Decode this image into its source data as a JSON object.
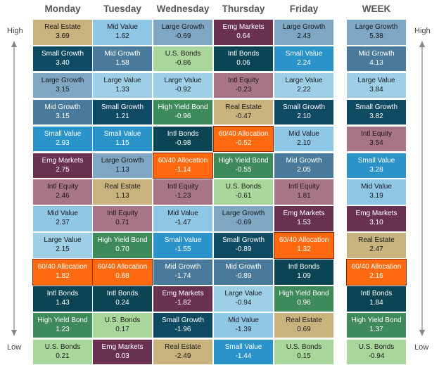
{
  "labels": {
    "high": "High",
    "low": "Low"
  },
  "asset_colors": {
    "Real Estate": "#c8b37f",
    "Small Growth": "#0e4a62",
    "Large Growth": "#7fa7c4",
    "Mid Growth": "#4a7a9b",
    "Small Value": "#2a93c9",
    "Emg Markets": "#6a3050",
    "Intl Equity": "#a87488",
    "Mid Value": "#8fc6e6",
    "Large Value": "#9dcfe7",
    "60/40 Allocation": "#ff6a10",
    "Intl Bonds": "#0b4452",
    "High Yield Bond": "#3f8a5a",
    "U.S. Bonds": "#a9d69a"
  },
  "chart_data": {
    "type": "table",
    "columns": [
      {
        "name": "Monday",
        "cells": [
          {
            "asset": "Real Estate",
            "value": "3.69"
          },
          {
            "asset": "Small Growth",
            "value": "3.40"
          },
          {
            "asset": "Large Growth",
            "value": "3.15"
          },
          {
            "asset": "Mid Growth",
            "value": "3.15"
          },
          {
            "asset": "Small Value",
            "value": "2.93"
          },
          {
            "asset": "Emg Markets",
            "value": "2.75"
          },
          {
            "asset": "Intl Equity",
            "value": "2.46"
          },
          {
            "asset": "Mid Value",
            "value": "2.37"
          },
          {
            "asset": "Large Value",
            "value": "2.15"
          },
          {
            "asset": "60/40 Allocation",
            "value": "1.82"
          },
          {
            "asset": "Intl Bonds",
            "value": "1.43"
          },
          {
            "asset": "High Yield Bond",
            "value": "1.23"
          },
          {
            "asset": "U.S. Bonds",
            "value": "0.21"
          }
        ]
      },
      {
        "name": "Tuesday",
        "cells": [
          {
            "asset": "Mid Value",
            "value": "1.62"
          },
          {
            "asset": "Mid Growth",
            "value": "1.58"
          },
          {
            "asset": "Large Value",
            "value": "1.33"
          },
          {
            "asset": "Small Growth",
            "value": "1.21"
          },
          {
            "asset": "Small Value",
            "value": "1.15"
          },
          {
            "asset": "Large Growth",
            "value": "1.13"
          },
          {
            "asset": "Real Estate",
            "value": "1.13"
          },
          {
            "asset": "Intl Equity",
            "value": "0.71"
          },
          {
            "asset": "High Yield Bond",
            "value": "0.70"
          },
          {
            "asset": "60/40 Allocation",
            "value": "0.68"
          },
          {
            "asset": "Intl Bonds",
            "value": "0.24"
          },
          {
            "asset": "U.S. Bonds",
            "value": "0.17"
          },
          {
            "asset": "Emg Markets",
            "value": "0.03"
          }
        ]
      },
      {
        "name": "Wednesday",
        "cells": [
          {
            "asset": "Large Growth",
            "value": "-0.69"
          },
          {
            "asset": "U.S. Bonds",
            "value": "-0.86"
          },
          {
            "asset": "Large Value",
            "value": "-0.92"
          },
          {
            "asset": "High Yield Bond",
            "value": "-0.96"
          },
          {
            "asset": "Intl Bonds",
            "value": "-0.98"
          },
          {
            "asset": "60/40 Allocation",
            "value": "-1.14"
          },
          {
            "asset": "Intl Equity",
            "value": "-1.23"
          },
          {
            "asset": "Mid Value",
            "value": "-1.47"
          },
          {
            "asset": "Small Value",
            "value": "-1.55"
          },
          {
            "asset": "Mid Growth",
            "value": "-1.74"
          },
          {
            "asset": "Emg Markets",
            "value": "-1.82"
          },
          {
            "asset": "Small Growth",
            "value": "-1.96"
          },
          {
            "asset": "Real Estate",
            "value": "-2.49"
          }
        ]
      },
      {
        "name": "Thursday",
        "cells": [
          {
            "asset": "Emg Markets",
            "value": "0.64"
          },
          {
            "asset": "Intl Bonds",
            "value": "0.06"
          },
          {
            "asset": "Intl Equity",
            "value": "-0.23"
          },
          {
            "asset": "Real Estate",
            "value": "-0.47"
          },
          {
            "asset": "60/40 Allocation",
            "value": "-0.52"
          },
          {
            "asset": "High Yield Bond",
            "value": "-0.55"
          },
          {
            "asset": "U.S. Bonds",
            "value": "-0.61"
          },
          {
            "asset": "Large Growth",
            "value": "-0.69"
          },
          {
            "asset": "Small Growth",
            "value": "-0.89"
          },
          {
            "asset": "Mid Growth",
            "value": "-0.89"
          },
          {
            "asset": "Large Value",
            "value": "-0.94"
          },
          {
            "asset": "Mid Value",
            "value": "-1.39"
          },
          {
            "asset": "Small Value",
            "value": "-1.44"
          }
        ]
      },
      {
        "name": "Friday",
        "cells": [
          {
            "asset": "Large Growth",
            "value": "2.43"
          },
          {
            "asset": "Small Value",
            "value": "2.24"
          },
          {
            "asset": "Large Value",
            "value": "2.22"
          },
          {
            "asset": "Small Growth",
            "value": "2.10"
          },
          {
            "asset": "Mid Value",
            "value": "2.10"
          },
          {
            "asset": "Mid Growth",
            "value": "2.05"
          },
          {
            "asset": "Intl Equity",
            "value": "1.81"
          },
          {
            "asset": "Emg Markets",
            "value": "1.53"
          },
          {
            "asset": "60/40 Allocation",
            "value": "1.32"
          },
          {
            "asset": "Intl Bonds",
            "value": "1.09"
          },
          {
            "asset": "High Yield Bond",
            "value": "0.96"
          },
          {
            "asset": "Real Estate",
            "value": "0.69"
          },
          {
            "asset": "U.S. Bonds",
            "value": "0.15"
          }
        ]
      },
      {
        "name": "WEEK",
        "cells": [
          {
            "asset": "Large Growth",
            "value": "5.38"
          },
          {
            "asset": "Mid Growth",
            "value": "4.13"
          },
          {
            "asset": "Large Value",
            "value": "3.84"
          },
          {
            "asset": "Small Growth",
            "value": "3.82"
          },
          {
            "asset": "Intl Equity",
            "value": "3.54"
          },
          {
            "asset": "Small Value",
            "value": "3.28"
          },
          {
            "asset": "Mid Value",
            "value": "3.19"
          },
          {
            "asset": "Emg Markets",
            "value": "3.10"
          },
          {
            "asset": "Real Estate",
            "value": "2.47"
          },
          {
            "asset": "60/40 Allocation",
            "value": "2.16"
          },
          {
            "asset": "Intl Bonds",
            "value": "1.84"
          },
          {
            "asset": "High Yield Bond",
            "value": "1.37"
          },
          {
            "asset": "U.S. Bonds",
            "value": "-0.94"
          }
        ]
      }
    ]
  }
}
